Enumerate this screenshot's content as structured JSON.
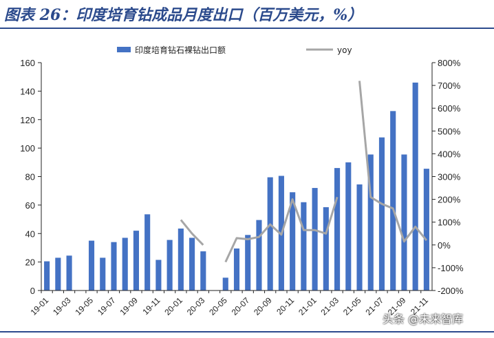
{
  "title": "图表 26：印度培育钻成品月度出口（百万美元，%）",
  "watermark": "头条 @未来智库",
  "chart_data": {
    "type": "bar",
    "categories": [
      "19-01",
      "19-02",
      "19-03",
      "19-04",
      "19-05",
      "19-06",
      "19-07",
      "19-08",
      "19-09",
      "19-10",
      "19-11",
      "19-12",
      "20-01",
      "20-02",
      "20-03",
      "20-04",
      "20-05",
      "20-06",
      "20-07",
      "20-08",
      "20-09",
      "20-10",
      "20-11",
      "20-12",
      "21-01",
      "21-02",
      "21-03",
      "21-04",
      "21-05",
      "21-06",
      "21-07",
      "21-08",
      "21-09",
      "21-10",
      "21-11"
    ],
    "x_tick_labels": [
      "19-01",
      "19-03",
      "19-05",
      "19-07",
      "19-09",
      "19-11",
      "20-01",
      "20-03",
      "20-05",
      "20-07",
      "20-09",
      "20-11",
      "21-01",
      "21-03",
      "21-05",
      "21-07",
      "21-09",
      "21-11"
    ],
    "series": [
      {
        "name": "印度培育钻石裸钻出口额",
        "kind": "bar",
        "axis": "left",
        "color": "#4472c4",
        "values": [
          20.5,
          23,
          24.5,
          null,
          35,
          23,
          34,
          37,
          42,
          53.5,
          21.5,
          35.5,
          43.5,
          37,
          27.5,
          null,
          9,
          29.5,
          39,
          49.5,
          79.5,
          80.5,
          69,
          62,
          72,
          58.5,
          86,
          90,
          74.5,
          95.5,
          107.5,
          126,
          95.5,
          146,
          85.5
        ]
      },
      {
        "name": "yoy",
        "kind": "line",
        "axis": "right",
        "color": "#a6a6a6",
        "values": [
          null,
          null,
          null,
          null,
          null,
          null,
          null,
          null,
          null,
          null,
          null,
          null,
          110,
          50,
          0,
          null,
          -75,
          30,
          25,
          35,
          90,
          45,
          200,
          65,
          65,
          50,
          210,
          null,
          720,
          210,
          180,
          160,
          15,
          80,
          20
        ]
      }
    ],
    "ylim_left": [
      0,
      160
    ],
    "yticks_left": [
      0,
      20,
      40,
      60,
      80,
      100,
      120,
      140,
      160
    ],
    "ylim_right": [
      -200,
      800
    ],
    "yticks_right": [
      "-200%",
      "-100%",
      "0%",
      "100%",
      "200%",
      "300%",
      "400%",
      "500%",
      "600%",
      "700%",
      "800%"
    ],
    "yticks_right_values": [
      -200,
      -100,
      0,
      100,
      200,
      300,
      400,
      500,
      600,
      700,
      800
    ],
    "legend_position": "top",
    "grid": false
  }
}
